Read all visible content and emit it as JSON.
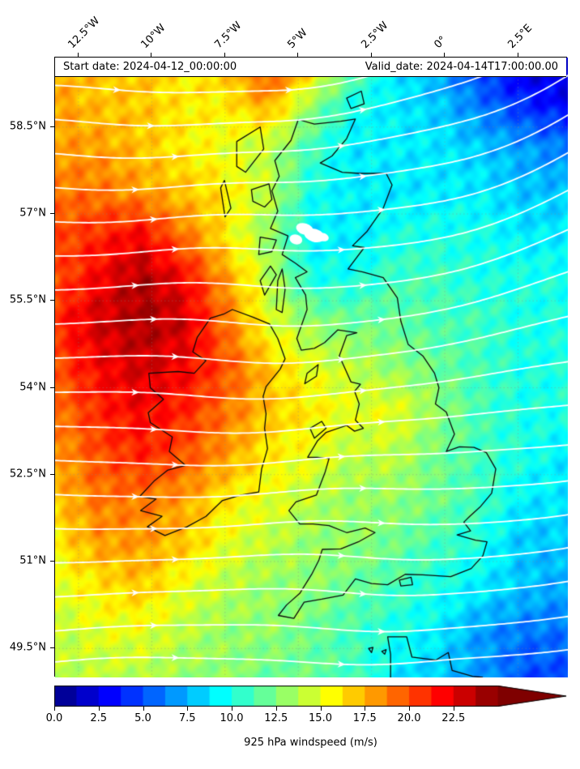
{
  "header": {
    "start_date_label": "Start date: 2024-04-12_00:00:00",
    "valid_date_label": "Valid_date: 2024-04-14T17:00:00.00"
  },
  "axes": {
    "extent": {
      "lon_min": -13.3,
      "lon_max": 4.2,
      "lat_min": 49.0,
      "lat_max": 59.7
    },
    "lon_ticks": [
      {
        "value": -12.5,
        "label": "12.5°W"
      },
      {
        "value": -10.0,
        "label": "10°W"
      },
      {
        "value": -7.5,
        "label": "7.5°W"
      },
      {
        "value": -5.0,
        "label": "5°W"
      },
      {
        "value": -2.5,
        "label": "2.5°W"
      },
      {
        "value": 0.0,
        "label": "0°"
      },
      {
        "value": 2.5,
        "label": "2.5°E"
      }
    ],
    "lat_ticks": [
      {
        "value": 58.5,
        "label": "58.5°N"
      },
      {
        "value": 57.0,
        "label": "57°N"
      },
      {
        "value": 55.5,
        "label": "55.5°N"
      },
      {
        "value": 54.0,
        "label": "54°N"
      },
      {
        "value": 52.5,
        "label": "52.5°N"
      },
      {
        "value": 51.0,
        "label": "51°N"
      },
      {
        "value": 49.5,
        "label": "49.5°N"
      }
    ],
    "gridline_color": "#8a8a8a"
  },
  "colorbar": {
    "label": "925 hPa windspeed (m/s)",
    "tick_values": [
      0,
      2.5,
      5,
      7.5,
      10,
      12.5,
      15,
      17.5,
      20,
      22.5
    ],
    "tick_labels": [
      "0.0",
      "2.5",
      "5.0",
      "7.5",
      "10.0",
      "12.5",
      "15.0",
      "17.5",
      "20.0",
      "22.5"
    ],
    "vmin": 0,
    "vmax": 25,
    "n_segments": 20,
    "extend": "max",
    "colormap": "jet"
  },
  "chart_data": {
    "type": "heatmap",
    "title": "",
    "region": "British Isles and surrounding seas",
    "colorbar_label": "925 hPa windspeed (m/s)",
    "units": "m/s",
    "colormap": "jet",
    "vmin": 0,
    "vmax": 25,
    "extend": "max",
    "overlay": "white wind streamlines with arrowheads; westerly flow curving up toward the northeast in the upper right, nearly zonal near the bottom",
    "lon_grid": [
      -13.3,
      -11.84,
      -10.38,
      -8.93,
      -7.47,
      -6.01,
      -4.55,
      -3.09,
      -1.63,
      -0.18,
      1.28,
      2.74,
      4.2
    ],
    "lat_grid_north_to_south": [
      59.7,
      58.94,
      58.17,
      57.41,
      56.64,
      55.88,
      55.11,
      54.35,
      53.58,
      52.82,
      52.06,
      51.29,
      50.53,
      49.76,
      49.0
    ],
    "windspeed": [
      [
        17,
        17,
        17,
        16,
        17,
        21,
        18,
        12,
        9,
        7,
        4,
        2,
        2
      ],
      [
        18,
        17,
        17,
        16,
        16,
        18,
        13,
        10,
        9,
        8,
        6,
        4,
        3
      ],
      [
        18,
        18,
        17,
        16,
        15,
        14,
        11,
        9,
        9,
        9,
        8,
        7,
        6
      ],
      [
        19,
        19,
        18,
        17,
        16,
        14,
        10,
        9,
        9,
        9,
        9,
        8,
        8
      ],
      [
        20,
        21,
        22,
        19,
        16,
        13,
        9,
        9,
        10,
        10,
        10,
        9,
        9
      ],
      [
        20,
        22,
        24,
        22,
        18,
        14,
        10,
        10,
        11,
        11,
        10,
        10,
        10
      ],
      [
        21,
        23,
        24,
        23,
        19,
        15,
        13,
        12,
        12,
        11,
        11,
        10,
        10
      ],
      [
        20,
        22,
        23,
        22,
        20,
        17,
        15,
        14,
        13,
        12,
        11,
        10,
        10
      ],
      [
        19,
        21,
        22,
        21,
        19,
        17,
        16,
        15,
        15,
        13,
        11,
        10,
        10
      ],
      [
        18,
        20,
        21,
        20,
        18,
        16,
        15,
        14,
        14,
        12,
        11,
        10,
        9
      ],
      [
        17,
        19,
        19,
        18,
        16,
        15,
        14,
        13,
        13,
        12,
        11,
        9,
        9
      ],
      [
        16,
        18,
        18,
        17,
        15,
        14,
        13,
        13,
        12,
        11,
        10,
        8,
        8
      ],
      [
        15,
        16,
        17,
        15,
        14,
        13,
        13,
        12,
        11,
        10,
        9,
        8,
        7
      ],
      [
        14,
        15,
        15,
        14,
        13,
        13,
        12,
        11,
        10,
        9,
        7,
        6,
        6
      ],
      [
        14,
        14,
        14,
        13,
        13,
        12,
        12,
        11,
        9,
        8,
        7,
        5,
        5
      ]
    ]
  },
  "streamlines": {
    "color": "#ffffff",
    "line_width": 1.8,
    "seed_ny": [
      0.045,
      0.1,
      0.155,
      0.21,
      0.265,
      0.32,
      0.375,
      0.43,
      0.485,
      0.54,
      0.595,
      0.65,
      0.705,
      0.76,
      0.815,
      0.87,
      0.925,
      0.975
    ]
  },
  "map": {
    "coastline_color": "#0a0a0a",
    "white_patches": [
      [
        -4.78,
        56.74,
        11,
        7
      ],
      [
        -4.45,
        56.63,
        13,
        8
      ],
      [
        -5.08,
        56.56,
        8,
        6
      ],
      [
        -4.15,
        56.6,
        7,
        5
      ]
    ],
    "coastlines": {
      "great_britain": [
        [
          -5.0,
          58.63
        ],
        [
          -4.45,
          58.55
        ],
        [
          -3.55,
          58.6
        ],
        [
          -3.05,
          58.64
        ],
        [
          -3.35,
          58.3
        ],
        [
          -3.85,
          58.0
        ],
        [
          -4.25,
          57.88
        ],
        [
          -3.5,
          57.72
        ],
        [
          -2.9,
          57.7
        ],
        [
          -2.0,
          57.7
        ],
        [
          -1.8,
          57.5
        ],
        [
          -2.1,
          57.1
        ],
        [
          -2.65,
          56.7
        ],
        [
          -3.15,
          56.45
        ],
        [
          -2.75,
          56.42
        ],
        [
          -3.3,
          56.05
        ],
        [
          -2.8,
          56.0
        ],
        [
          -2.1,
          55.9
        ],
        [
          -1.62,
          55.55
        ],
        [
          -1.5,
          55.15
        ],
        [
          -1.25,
          54.75
        ],
        [
          -0.75,
          54.55
        ],
        [
          -0.35,
          54.25
        ],
        [
          -0.2,
          54.0
        ],
        [
          -0.32,
          53.72
        ],
        [
          0.05,
          53.58
        ],
        [
          0.33,
          53.2
        ],
        [
          0.05,
          52.9
        ],
        [
          0.5,
          52.98
        ],
        [
          1.0,
          52.97
        ],
        [
          1.42,
          52.88
        ],
        [
          1.74,
          52.6
        ],
        [
          1.6,
          52.18
        ],
        [
          1.2,
          51.94
        ],
        [
          0.85,
          51.78
        ],
        [
          0.65,
          51.68
        ],
        [
          0.88,
          51.53
        ],
        [
          0.42,
          51.46
        ],
        [
          1.05,
          51.37
        ],
        [
          1.44,
          51.34
        ],
        [
          1.3,
          51.1
        ],
        [
          0.9,
          50.88
        ],
        [
          0.2,
          50.74
        ],
        [
          -0.75,
          50.77
        ],
        [
          -1.35,
          50.78
        ],
        [
          -1.95,
          50.6
        ],
        [
          -2.5,
          50.62
        ],
        [
          -3.05,
          50.7
        ],
        [
          -3.47,
          50.42
        ],
        [
          -4.2,
          50.35
        ],
        [
          -4.8,
          50.3
        ],
        [
          -5.15,
          50.02
        ],
        [
          -5.68,
          50.07
        ],
        [
          -5.4,
          50.25
        ],
        [
          -4.95,
          50.45
        ],
        [
          -4.52,
          50.8
        ],
        [
          -4.3,
          51.02
        ],
        [
          -4.18,
          51.21
        ],
        [
          -3.55,
          51.22
        ],
        [
          -2.95,
          51.34
        ],
        [
          -2.38,
          51.5
        ],
        [
          -2.72,
          51.58
        ],
        [
          -3.35,
          51.5
        ],
        [
          -3.95,
          51.62
        ],
        [
          -4.5,
          51.65
        ],
        [
          -4.95,
          51.65
        ],
        [
          -5.32,
          51.88
        ],
        [
          -5.08,
          52.03
        ],
        [
          -4.38,
          52.15
        ],
        [
          -4.08,
          52.55
        ],
        [
          -3.95,
          52.78
        ],
        [
          -4.35,
          52.8
        ],
        [
          -4.68,
          52.8
        ],
        [
          -4.35,
          53.08
        ],
        [
          -4.05,
          53.23
        ],
        [
          -3.35,
          53.35
        ],
        [
          -3.08,
          53.25
        ],
        [
          -2.78,
          53.3
        ],
        [
          -3.05,
          53.44
        ],
        [
          -2.92,
          53.72
        ],
        [
          -3.08,
          53.94
        ],
        [
          -2.88,
          54.06
        ],
        [
          -3.2,
          54.1
        ],
        [
          -3.45,
          54.38
        ],
        [
          -3.6,
          54.55
        ],
        [
          -3.35,
          54.9
        ],
        [
          -3.0,
          54.95
        ],
        [
          -3.65,
          55.0
        ],
        [
          -4.1,
          54.78
        ],
        [
          -4.45,
          54.68
        ],
        [
          -4.9,
          54.65
        ],
        [
          -5.05,
          54.85
        ],
        [
          -4.7,
          55.35
        ],
        [
          -4.75,
          55.6
        ],
        [
          -5.1,
          55.9
        ],
        [
          -4.7,
          56.0
        ],
        [
          -5.1,
          56.15
        ],
        [
          -5.55,
          56.3
        ],
        [
          -5.35,
          56.62
        ],
        [
          -5.95,
          56.75
        ],
        [
          -5.7,
          57.05
        ],
        [
          -5.9,
          57.4
        ],
        [
          -5.65,
          57.65
        ],
        [
          -5.8,
          57.92
        ],
        [
          -5.25,
          58.27
        ]
      ],
      "ireland": [
        [
          -7.25,
          55.35
        ],
        [
          -6.55,
          55.22
        ],
        [
          -5.98,
          55.1
        ],
        [
          -5.7,
          54.85
        ],
        [
          -5.45,
          54.5
        ],
        [
          -5.62,
          54.32
        ],
        [
          -6.1,
          54.02
        ],
        [
          -6.2,
          53.85
        ],
        [
          -6.1,
          53.55
        ],
        [
          -6.15,
          53.3
        ],
        [
          -6.05,
          52.95
        ],
        [
          -6.25,
          52.6
        ],
        [
          -6.35,
          52.2
        ],
        [
          -6.95,
          52.15
        ],
        [
          -7.6,
          52.05
        ],
        [
          -8.15,
          51.78
        ],
        [
          -8.8,
          51.6
        ],
        [
          -9.55,
          51.45
        ],
        [
          -10.15,
          51.6
        ],
        [
          -9.65,
          51.78
        ],
        [
          -10.38,
          51.88
        ],
        [
          -9.85,
          52.08
        ],
        [
          -10.42,
          52.12
        ],
        [
          -9.9,
          52.4
        ],
        [
          -9.45,
          52.58
        ],
        [
          -8.85,
          52.66
        ],
        [
          -9.4,
          52.9
        ],
        [
          -9.3,
          53.15
        ],
        [
          -10.05,
          53.4
        ],
        [
          -10.12,
          53.57
        ],
        [
          -9.6,
          53.8
        ],
        [
          -10.05,
          54.0
        ],
        [
          -10.1,
          54.25
        ],
        [
          -9.1,
          54.28
        ],
        [
          -8.55,
          54.25
        ],
        [
          -8.15,
          54.47
        ],
        [
          -8.6,
          54.62
        ],
        [
          -8.45,
          54.87
        ],
        [
          -8.0,
          55.2
        ],
        [
          -7.55,
          55.27
        ]
      ],
      "islands": [
        [
          [
            -7.1,
            58.25
          ],
          [
            -6.3,
            58.5
          ],
          [
            -6.18,
            58.12
          ],
          [
            -6.8,
            57.72
          ],
          [
            -7.1,
            57.82
          ]
        ],
        [
          [
            -7.52,
            57.58
          ],
          [
            -7.3,
            57.1
          ],
          [
            -7.5,
            56.95
          ],
          [
            -7.65,
            57.45
          ]
        ],
        [
          [
            -6.6,
            57.42
          ],
          [
            -6.0,
            57.52
          ],
          [
            -5.9,
            57.25
          ],
          [
            -6.15,
            57.12
          ],
          [
            -6.55,
            57.22
          ]
        ],
        [
          [
            -6.3,
            56.6
          ],
          [
            -5.75,
            56.55
          ],
          [
            -5.9,
            56.35
          ],
          [
            -6.35,
            56.3
          ]
        ],
        [
          [
            -6.3,
            55.85
          ],
          [
            -5.95,
            56.1
          ],
          [
            -5.75,
            55.95
          ],
          [
            -6.15,
            55.6
          ]
        ],
        [
          [
            -5.45,
            55.7
          ],
          [
            -5.55,
            55.3
          ],
          [
            -5.75,
            55.35
          ],
          [
            -5.7,
            55.85
          ],
          [
            -5.55,
            56.05
          ]
        ],
        [
          [
            -3.35,
            59.0
          ],
          [
            -2.85,
            59.12
          ],
          [
            -2.75,
            58.9
          ],
          [
            -3.2,
            58.82
          ]
        ],
        [
          [
            -4.78,
            54.07
          ],
          [
            -4.38,
            54.2
          ],
          [
            -4.32,
            54.4
          ],
          [
            -4.7,
            54.25
          ]
        ],
        [
          [
            -4.6,
            53.3
          ],
          [
            -4.2,
            53.42
          ],
          [
            -4.05,
            53.3
          ],
          [
            -4.45,
            53.13
          ]
        ],
        [
          [
            -1.55,
            50.68
          ],
          [
            -1.15,
            50.73
          ],
          [
            -1.1,
            50.6
          ],
          [
            -1.5,
            50.58
          ]
        ],
        [
          [
            -2.15,
            49.45
          ],
          [
            -2.0,
            49.48
          ],
          [
            -2.05,
            49.4
          ]
        ],
        [
          [
            -2.6,
            49.5
          ],
          [
            -2.45,
            49.52
          ],
          [
            -2.5,
            49.43
          ]
        ]
      ],
      "france_normandy": [
        [
          -1.85,
          49.0
        ],
        [
          -1.85,
          49.4
        ],
        [
          -1.95,
          49.7
        ],
        [
          -1.3,
          49.7
        ],
        [
          -1.12,
          49.35
        ],
        [
          -0.3,
          49.3
        ],
        [
          0.12,
          49.43
        ],
        [
          0.25,
          49.12
        ],
        [
          0.95,
          49.02
        ],
        [
          1.3,
          49.0
        ]
      ]
    }
  }
}
